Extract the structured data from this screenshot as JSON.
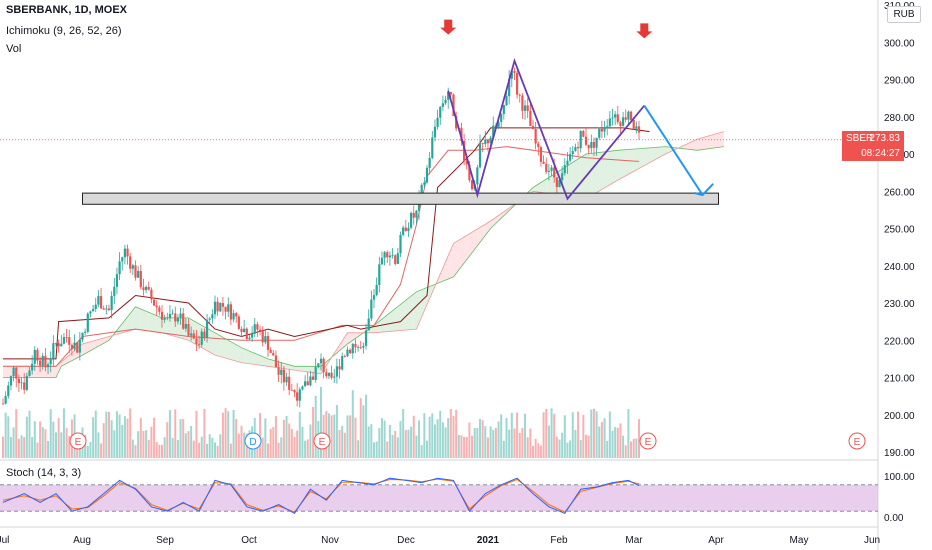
{
  "header": {
    "symbol_line": "SBERBANK, 1D, MOEX",
    "ichimoku_label": "Ichimoku (9, 26, 52, 26)",
    "volume_label": "Vol",
    "stoch_label": "Stoch (14, 3, 3)",
    "currency": "RUB"
  },
  "price_tag": {
    "ticker": "SBER",
    "price": "273.83",
    "countdown": "08:24:27"
  },
  "colors": {
    "up": "#26a69a",
    "down": "#ef5350",
    "cloud_up": "#c8e6c9",
    "cloud_down": "#ffcdd2",
    "tenkan": "#8b1a1a",
    "kijun": "#e06666",
    "pattern": "#673ab7",
    "forecast": "#2196f3",
    "arrow": "#e53935",
    "stoch_k": "#2962ff",
    "stoch_d": "#ff6d00",
    "stoch_band": "#e1bee7"
  },
  "chart_data": {
    "type": "candlestick",
    "price_axis": {
      "min": 190,
      "max": 310,
      "ticks": [
        "190.00",
        "200.00",
        "210.00",
        "220.00",
        "230.00",
        "240.00",
        "250.00",
        "260.00",
        "270.00",
        "280.00",
        "290.00",
        "300.00",
        "310.00"
      ]
    },
    "stoch_axis": {
      "min": 0,
      "max": 100,
      "ticks": [
        "0.00",
        "100.00"
      ],
      "bands": [
        20,
        80
      ]
    },
    "time_axis": {
      "labels": [
        "Jul",
        "Aug",
        "Sep",
        "Oct",
        "Nov",
        "Dec",
        "2021",
        "Feb",
        "Mar",
        "Apr",
        "May",
        "Jun"
      ]
    },
    "close_series": [
      [
        0,
        203
      ],
      [
        4,
        212
      ],
      [
        8,
        208
      ],
      [
        12,
        217
      ],
      [
        16,
        213
      ],
      [
        20,
        219
      ],
      [
        24,
        221
      ],
      [
        28,
        218
      ],
      [
        32,
        226
      ],
      [
        36,
        231
      ],
      [
        40,
        228
      ],
      [
        44,
        241
      ],
      [
        46,
        244
      ],
      [
        50,
        238
      ],
      [
        54,
        233
      ],
      [
        58,
        229
      ],
      [
        62,
        225
      ],
      [
        66,
        227
      ],
      [
        70,
        221
      ],
      [
        74,
        219
      ],
      [
        78,
        226
      ],
      [
        80,
        230
      ],
      [
        84,
        229
      ],
      [
        88,
        226
      ],
      [
        92,
        222
      ],
      [
        96,
        223
      ],
      [
        100,
        219
      ],
      [
        104,
        211
      ],
      [
        108,
        208
      ],
      [
        112,
        205
      ],
      [
        116,
        210
      ],
      [
        120,
        214
      ],
      [
        124,
        208
      ],
      [
        128,
        216
      ],
      [
        132,
        219
      ],
      [
        136,
        217
      ],
      [
        140,
        233
      ],
      [
        144,
        245
      ],
      [
        148,
        242
      ],
      [
        152,
        251
      ],
      [
        156,
        254
      ],
      [
        160,
        266
      ],
      [
        164,
        281
      ],
      [
        168,
        287
      ],
      [
        172,
        276
      ],
      [
        176,
        264
      ],
      [
        178,
        260
      ],
      [
        180,
        271
      ],
      [
        184,
        275
      ],
      [
        188,
        279
      ],
      [
        192,
        294
      ],
      [
        194,
        287
      ],
      [
        198,
        280
      ],
      [
        202,
        270
      ],
      [
        206,
        266
      ],
      [
        210,
        262
      ],
      [
        214,
        269
      ],
      [
        218,
        275
      ],
      [
        222,
        272
      ],
      [
        226,
        277
      ],
      [
        230,
        281
      ],
      [
        234,
        279
      ],
      [
        236,
        282
      ],
      [
        240,
        274
      ]
    ],
    "series": [
      {
        "name": "",
        "values": [
          [
            0,
            215
          ],
          [
            20,
            215
          ],
          [
            21,
            225
          ],
          [
            40,
            226
          ],
          [
            50,
            232
          ],
          [
            70,
            230
          ],
          [
            80,
            223
          ],
          [
            90,
            221
          ],
          [
            100,
            223
          ],
          [
            110,
            221
          ],
          [
            130,
            224
          ],
          [
            135,
            223
          ],
          [
            150,
            225
          ],
          [
            160,
            232
          ],
          [
            164,
            261
          ],
          [
            178,
            271
          ],
          [
            184,
            277
          ],
          [
            204,
            277
          ],
          [
            214,
            277
          ],
          [
            224,
            277
          ],
          [
            234,
            277
          ],
          [
            244,
            276
          ]
        ]
      },
      {
        "name": "",
        "values": [
          [
            0,
            213
          ],
          [
            20,
            213
          ],
          [
            30,
            221
          ],
          [
            50,
            223
          ],
          [
            70,
            221
          ],
          [
            90,
            220
          ],
          [
            100,
            220
          ],
          [
            110,
            220
          ],
          [
            128,
            224
          ],
          [
            140,
            224
          ],
          [
            150,
            235
          ],
          [
            156,
            251
          ],
          [
            160,
            264
          ],
          [
            168,
            271
          ],
          [
            178,
            271
          ],
          [
            190,
            272
          ],
          [
            200,
            271
          ],
          [
            210,
            270
          ],
          [
            220,
            269
          ],
          [
            240,
            268
          ]
        ]
      },
      {
        "name": "",
        "values": [
          [
            0,
            210
          ],
          [
            20,
            210
          ],
          [
            22,
            213
          ],
          [
            30,
            216
          ],
          [
            40,
            220
          ],
          [
            50,
            229
          ],
          [
            60,
            226
          ],
          [
            70,
            226
          ],
          [
            80,
            222
          ],
          [
            90,
            218
          ],
          [
            100,
            215
          ],
          [
            110,
            213
          ],
          [
            120,
            213
          ],
          [
            130,
            219
          ],
          [
            140,
            224
          ],
          [
            156,
            233
          ],
          [
            170,
            237
          ],
          [
            184,
            250
          ],
          [
            200,
            261
          ],
          [
            220,
            270
          ],
          [
            232,
            271
          ],
          [
            250,
            272
          ],
          [
            262,
            271
          ],
          [
            272,
            272
          ]
        ]
      },
      {
        "name": "",
        "values": [
          [
            0,
            213
          ],
          [
            10,
            213
          ],
          [
            20,
            213
          ],
          [
            30,
            219
          ],
          [
            40,
            221
          ],
          [
            50,
            223
          ],
          [
            60,
            222
          ],
          [
            70,
            220
          ],
          [
            80,
            216
          ],
          [
            90,
            214
          ],
          [
            100,
            213
          ],
          [
            110,
            212
          ],
          [
            120,
            211
          ],
          [
            130,
            222
          ],
          [
            140,
            222
          ],
          [
            156,
            223
          ],
          [
            170,
            246
          ],
          [
            184,
            252
          ],
          [
            200,
            260
          ],
          [
            220,
            258
          ],
          [
            232,
            263
          ],
          [
            250,
            270
          ],
          [
            262,
            274
          ],
          [
            272,
            276
          ]
        ]
      }
    ],
    "stoch_k": [
      [
        0,
        40
      ],
      [
        8,
        60
      ],
      [
        14,
        40
      ],
      [
        20,
        60
      ],
      [
        26,
        20
      ],
      [
        32,
        30
      ],
      [
        38,
        60
      ],
      [
        44,
        90
      ],
      [
        50,
        70
      ],
      [
        56,
        30
      ],
      [
        62,
        20
      ],
      [
        68,
        40
      ],
      [
        74,
        20
      ],
      [
        80,
        90
      ],
      [
        86,
        80
      ],
      [
        92,
        30
      ],
      [
        98,
        20
      ],
      [
        104,
        35
      ],
      [
        110,
        15
      ],
      [
        116,
        70
      ],
      [
        122,
        45
      ],
      [
        128,
        90
      ],
      [
        134,
        85
      ],
      [
        140,
        80
      ],
      [
        146,
        95
      ],
      [
        152,
        90
      ],
      [
        158,
        85
      ],
      [
        164,
        95
      ],
      [
        170,
        90
      ],
      [
        176,
        20
      ],
      [
        182,
        60
      ],
      [
        188,
        80
      ],
      [
        194,
        95
      ],
      [
        200,
        60
      ],
      [
        206,
        30
      ],
      [
        212,
        15
      ],
      [
        218,
        70
      ],
      [
        224,
        75
      ],
      [
        230,
        85
      ],
      [
        236,
        90
      ],
      [
        240,
        78
      ]
    ],
    "stoch_d": [
      [
        0,
        45
      ],
      [
        8,
        55
      ],
      [
        14,
        45
      ],
      [
        20,
        55
      ],
      [
        26,
        25
      ],
      [
        32,
        28
      ],
      [
        38,
        55
      ],
      [
        44,
        85
      ],
      [
        50,
        72
      ],
      [
        56,
        35
      ],
      [
        62,
        22
      ],
      [
        68,
        38
      ],
      [
        74,
        25
      ],
      [
        80,
        85
      ],
      [
        86,
        82
      ],
      [
        92,
        35
      ],
      [
        98,
        22
      ],
      [
        104,
        32
      ],
      [
        110,
        18
      ],
      [
        116,
        65
      ],
      [
        122,
        48
      ],
      [
        128,
        86
      ],
      [
        134,
        86
      ],
      [
        140,
        82
      ],
      [
        146,
        92
      ],
      [
        152,
        91
      ],
      [
        158,
        87
      ],
      [
        164,
        93
      ],
      [
        170,
        88
      ],
      [
        176,
        25
      ],
      [
        182,
        55
      ],
      [
        188,
        78
      ],
      [
        194,
        92
      ],
      [
        200,
        65
      ],
      [
        206,
        35
      ],
      [
        212,
        18
      ],
      [
        218,
        65
      ],
      [
        224,
        74
      ],
      [
        230,
        83
      ],
      [
        236,
        88
      ],
      [
        240,
        82
      ]
    ],
    "support_zone": {
      "from": 256.5,
      "to": 259.5
    },
    "pattern_points": [
      [
        168,
        287
      ],
      [
        179,
        259
      ],
      [
        193,
        295
      ],
      [
        213,
        258
      ],
      [
        242,
        283
      ]
    ],
    "forecast_points": [
      [
        242,
        283
      ],
      [
        264,
        259
      ],
      [
        268,
        262
      ]
    ],
    "event_markers": [
      "E",
      "D",
      "E",
      "E",
      "E"
    ]
  }
}
